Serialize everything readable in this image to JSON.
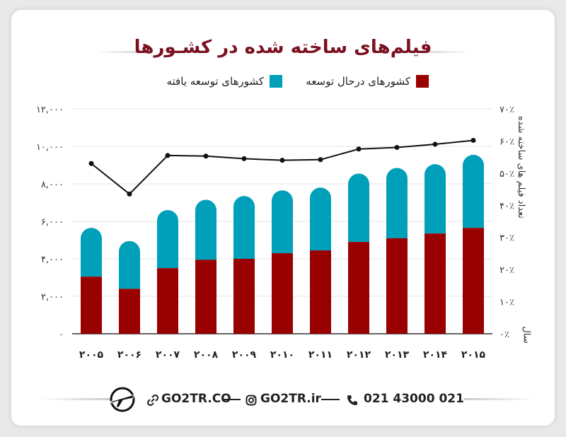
{
  "title": "فیلم‌های ساخته شده در کشـورها",
  "legend": {
    "developing": "کشورهای درحال توسعه",
    "developed": "کشورهای توسعه یافته"
  },
  "axis": {
    "right_title": "تعداد فیلم های ساخته شده",
    "x_title": "سال"
  },
  "colors": {
    "developing": "#990000",
    "developed": "#00a0bb",
    "line": "#111111",
    "title": "#7a1020"
  },
  "footer": {
    "site": "GO2TR.CO",
    "instagram": "GO2TR.ir",
    "phone": "021 43000 021",
    "logo_icon": "plane-logo-icon",
    "link_icon": "link-icon",
    "instagram_icon": "instagram-icon",
    "phone_icon": "phone-icon"
  },
  "chart_data": {
    "type": "bar",
    "stacked": true,
    "categories": [
      "۲۰۰۵",
      "۲۰۰۶",
      "۲۰۰۷",
      "۲۰۰۸",
      "۲۰۰۹",
      "۲۰۱۰",
      "۲۰۱۱",
      "۲۰۱۲",
      "۲۰۱۳",
      "۲۰۱۴",
      "۲۰۱۵"
    ],
    "series": [
      {
        "name": "کشورهای درحال توسعه",
        "values": [
          3050,
          2400,
          3500,
          3950,
          4000,
          4300,
          4450,
          4900,
          5100,
          5350,
          5650
        ]
      },
      {
        "name": "کشورهای توسعه یافته",
        "values": [
          2600,
          2550,
          3100,
          3200,
          3350,
          3350,
          3350,
          3650,
          3750,
          3700,
          3900
        ]
      }
    ],
    "line": {
      "axis": "right",
      "values": [
        53,
        43.5,
        55.5,
        55.3,
        54.5,
        54,
        54.2,
        57.5,
        58,
        59,
        60.2
      ]
    },
    "ylim": [
      0,
      12000
    ],
    "yticks": [
      "۰",
      "۲,۰۰۰",
      "۴,۰۰۰",
      "۶,۰۰۰",
      "۸,۰۰۰",
      "۱۰,۰۰۰",
      "۱۲,۰۰۰"
    ],
    "y2lim": [
      0,
      70
    ],
    "y2ticks": [
      "۰٪",
      "۱۰٪",
      "۲۰٪",
      "۳۰٪",
      "۴۰٪",
      "۵۰٪",
      "۶۰٪",
      "۷۰٪"
    ],
    "grid": true,
    "legend_position": "top"
  }
}
